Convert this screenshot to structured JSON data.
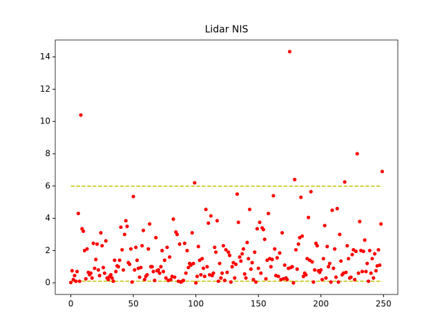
{
  "chart_data": {
    "type": "scatter",
    "title": "Lidar NIS",
    "color": "#ff0000",
    "x": [
      0,
      1,
      2,
      3,
      4,
      5,
      6,
      7,
      8,
      9,
      10,
      11,
      12,
      13,
      14,
      15,
      16,
      17,
      18,
      19,
      20,
      21,
      22,
      23,
      24,
      25,
      26,
      27,
      28,
      29,
      30,
      31,
      32,
      33,
      34,
      35,
      36,
      37,
      38,
      39,
      40,
      41,
      42,
      43,
      44,
      45,
      46,
      47,
      48,
      49,
      50,
      51,
      52,
      53,
      54,
      55,
      56,
      57,
      58,
      59,
      60,
      61,
      62,
      63,
      64,
      65,
      66,
      67,
      68,
      69,
      70,
      71,
      72,
      73,
      74,
      75,
      76,
      77,
      78,
      79,
      80,
      81,
      82,
      83,
      84,
      85,
      86,
      87,
      88,
      89,
      90,
      91,
      92,
      93,
      94,
      95,
      96,
      97,
      98,
      99,
      100,
      101,
      102,
      103,
      104,
      105,
      106,
      107,
      108,
      109,
      110,
      111,
      112,
      113,
      114,
      115,
      116,
      117,
      118,
      119,
      120,
      121,
      122,
      123,
      124,
      125,
      126,
      127,
      128,
      129,
      130,
      131,
      132,
      133,
      134,
      135,
      136,
      137,
      138,
      139,
      140,
      141,
      142,
      143,
      144,
      145,
      146,
      147,
      148,
      149,
      150,
      151,
      152,
      153,
      154,
      155,
      156,
      157,
      158,
      159,
      160,
      161,
      162,
      163,
      164,
      165,
      166,
      167,
      168,
      169,
      170,
      171,
      172,
      173,
      174,
      175,
      176,
      177,
      178,
      179,
      180,
      181,
      182,
      183,
      184,
      185,
      186,
      187,
      188,
      189,
      190,
      191,
      192,
      193,
      194,
      195,
      196,
      197,
      198,
      199,
      200,
      201,
      202,
      203,
      204,
      205,
      206,
      207,
      208,
      209,
      210,
      211,
      212,
      213,
      214,
      215,
      216,
      217,
      218,
      219,
      220,
      221,
      222,
      223,
      224,
      225,
      226,
      227,
      228,
      229,
      230,
      231,
      232,
      233,
      234,
      235,
      236,
      237,
      238,
      239,
      240,
      241,
      242,
      243,
      244,
      245,
      246,
      247,
      248,
      249
    ],
    "values": [
      0.02,
      0.75,
      0.2,
      0.45,
      0.1,
      0.7,
      4.3,
      0.1,
      10.4,
      3.35,
      3.2,
      2.0,
      0.25,
      2.1,
      0.65,
      0.5,
      0.6,
      0.3,
      2.45,
      0.9,
      1.45,
      2.4,
      0.8,
      0.45,
      3.1,
      2.3,
      0.95,
      0.6,
      2.6,
      0.3,
      0.2,
      0.4,
      0.5,
      0.3,
      0.1,
      1.4,
      0.7,
      1.05,
      1.0,
      1.4,
      3.45,
      2.05,
      0.8,
      3.0,
      3.85,
      3.5,
      1.25,
      1.15,
      2.1,
      0.05,
      5.35,
      0.8,
      2.2,
      1.4,
      0.9,
      0.35,
      0.95,
      2.3,
      3.25,
      0.2,
      0.4,
      0.5,
      2.1,
      3.65,
      1.0,
      1.0,
      0.7,
      0.15,
      2.8,
      0.75,
      0.8,
      0.6,
      1.0,
      2.0,
      0.7,
      1.4,
      0.3,
      2.2,
      0.15,
      1.6,
      0.2,
      0.4,
      3.95,
      0.35,
      3.15,
      3.0,
      0.1,
      2.4,
      0.05,
      0.1,
      0.15,
      2.45,
      0.6,
      2.0,
      0.95,
      1.2,
      1.1,
      3.1,
      1.2,
      6.2,
      0.0,
      0.4,
      2.25,
      1.4,
      0.5,
      1.5,
      0.9,
      0.4,
      4.55,
      1.0,
      3.7,
      0.5,
      4.15,
      0.45,
      0.6,
      2.2,
      1.9,
      3.85,
      0.1,
      1.2,
      0.3,
      0.6,
      2.3,
      0.15,
      2.05,
      0.65,
      1.9,
      1.7,
      0.05,
      1.0,
      1.25,
      0.3,
      1.15,
      5.5,
      3.75,
      1.6,
      1.35,
      1.8,
      2.1,
      0.55,
      0.3,
      2.5,
      1.5,
      4.55,
      0.85,
      1.25,
      0.2,
      1.9,
      0.05,
      3.35,
      0.9,
      3.75,
      0.6,
      3.4,
      3.3,
      2.7,
      0.25,
      1.4,
      4.3,
      1.5,
      1.0,
      1.45,
      5.4,
      2.1,
      0.45,
      1.55,
      0.4,
      1.85,
      0.2,
      3.1,
      0.25,
      1.1,
      0.3,
      0.2,
      0.9,
      14.33,
      0.95,
      1.0,
      0.0,
      6.4,
      2.05,
      0.85,
      2.4,
      2.8,
      5.3,
      2.9,
      0.4,
      0.6,
      0.5,
      1.5,
      4.05,
      1.4,
      5.65,
      1.3,
      0.05,
      0.8,
      2.45,
      2.3,
      0.75,
      0.65,
      0.8,
      0.2,
      1.5,
      3.55,
      0.3,
      2.25,
      1.0,
      1.2,
      0.05,
      4.5,
      0.9,
      2.1,
      0.35,
      4.6,
      0.05,
      3.0,
      1.35,
      0.5,
      0.6,
      6.25,
      0.65,
      2.3,
      1.5,
      0.3,
      0.35,
      1.75,
      2.05,
      0.2,
      1.95,
      8.0,
      0.6,
      3.8,
      2.0,
      0.7,
      1.95,
      2.65,
      0.7,
      1.2,
      0.1,
      2.0,
      0.6,
      1.5,
      0.3,
      1.8,
      0.75,
      1.05,
      2.05,
      1.1,
      3.65,
      6.9
    ],
    "xlim": [
      -12.45,
      261.45
    ],
    "ylim": [
      -0.72,
      15.05
    ],
    "xticks": [
      0,
      50,
      100,
      150,
      200,
      250
    ],
    "yticks": [
      0,
      2,
      4,
      6,
      8,
      10,
      12,
      14
    ],
    "reference_lines": [
      5.991,
      0.103
    ],
    "reference_color": "#bfbf00"
  }
}
